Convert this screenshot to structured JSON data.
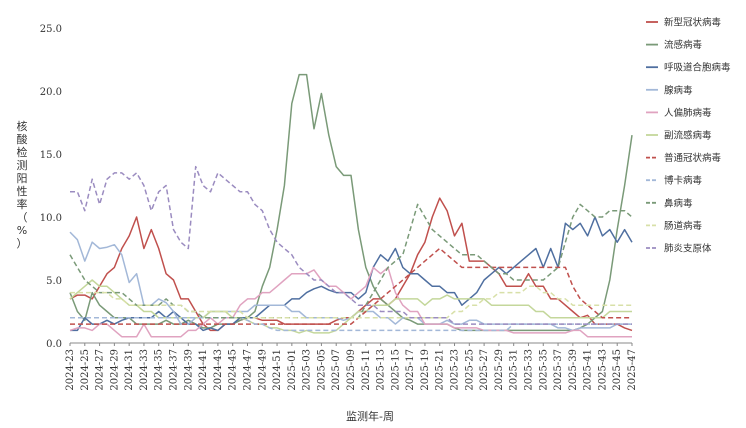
{
  "chart_data": {
    "type": "line",
    "title": "",
    "xlabel": "监测年-周",
    "ylabel": "核酸检测阳性率（%）",
    "ylim": [
      0,
      25
    ],
    "y_ticks": [
      "0.0",
      "5.0",
      "10.0",
      "15.0",
      "20.0",
      "25.0"
    ],
    "grid": false,
    "legend_position": "right",
    "x": [
      "2024-23",
      "2024-24",
      "2024-25",
      "2024-26",
      "2024-27",
      "2024-28",
      "2024-29",
      "2024-30",
      "2024-31",
      "2024-32",
      "2024-33",
      "2024-34",
      "2024-35",
      "2024-36",
      "2024-37",
      "2024-38",
      "2024-39",
      "2024-40",
      "2024-41",
      "2024-42",
      "2024-43",
      "2024-44",
      "2024-45",
      "2024-46",
      "2024-47",
      "2024-48",
      "2024-49",
      "2024-50",
      "2024-51",
      "2024-52",
      "2025-01",
      "2025-02",
      "2025-03",
      "2025-04",
      "2025-05",
      "2025-06",
      "2025-07",
      "2025-08",
      "2025-09",
      "2025-10",
      "2025-11",
      "2025-12",
      "2025-13",
      "2025-14",
      "2025-15",
      "2025-16",
      "2025-17",
      "2025-18",
      "2025-19",
      "2025-20",
      "2025-21",
      "2025-22",
      "2025-23",
      "2025-24",
      "2025-25",
      "2025-26",
      "2025-27",
      "2025-28",
      "2025-29",
      "2025-30",
      "2025-31",
      "2025-32",
      "2025-33",
      "2025-34",
      "2025-35",
      "2025-36",
      "2025-37",
      "2025-38",
      "2025-39",
      "2025-40",
      "2025-41",
      "2025-42",
      "2025-43",
      "2025-44",
      "2025-45",
      "2025-46",
      "2025-47"
    ],
    "x_tick_labels": [
      "2024-23",
      "2024-25",
      "2024-27",
      "2024-29",
      "2024-31",
      "2024-33",
      "2024-35",
      "2024-37",
      "2024-39",
      "2024-41",
      "2024-43",
      "2024-45",
      "2024-47",
      "2024-49",
      "2024-51",
      "2025-01",
      "2025-03",
      "2025-05",
      "2025-07",
      "2025-09",
      "2025-11",
      "2025-13",
      "2025-15",
      "2025-17",
      "2025-19",
      "2025-21",
      "2025-23",
      "2025-25",
      "2025-27",
      "2025-29",
      "2025-31",
      "2025-33",
      "2025-35",
      "2025-37",
      "2025-39",
      "2025-41",
      "2025-43",
      "2025-45",
      "2025-47"
    ],
    "series": [
      {
        "name": "新型冠状病毒",
        "color": "#c0504d",
        "dash": "solid",
        "values": [
          3.5,
          3.8,
          3.8,
          3.5,
          4.5,
          5.5,
          6,
          7.5,
          8.5,
          10,
          7.5,
          9,
          7.5,
          5.5,
          5,
          3.5,
          3.5,
          2.5,
          1.5,
          1,
          1,
          1.5,
          1.5,
          1.8,
          2,
          2,
          1.8,
          1.8,
          1.8,
          1.5,
          1.5,
          1.5,
          1.5,
          1.5,
          1.5,
          1.5,
          1.8,
          2,
          2,
          2.5,
          3,
          3.5,
          3.5,
          3,
          3.5,
          4.5,
          5.5,
          7,
          8,
          10,
          11.5,
          10.5,
          8.5,
          9.5,
          6.5,
          6.5,
          6.5,
          6,
          5.5,
          4.5,
          4.5,
          4.5,
          5.5,
          4.5,
          4.5,
          3.5,
          3.5,
          3,
          2.5,
          2,
          2.2,
          1.5,
          1.5,
          1.5,
          1.5,
          1.2,
          1
        ]
      },
      {
        "name": "流感病毒",
        "color": "#7a9a78",
        "dash": "solid",
        "values": [
          4,
          2.5,
          1.8,
          4,
          3,
          2.5,
          2,
          2,
          2,
          1.5,
          1.5,
          1.5,
          1.5,
          1.8,
          1.5,
          1.5,
          1.8,
          1.5,
          1.2,
          1.2,
          1.5,
          1.5,
          1.5,
          1.8,
          2,
          2.5,
          4.5,
          6,
          9,
          12.5,
          19,
          21.3,
          21.3,
          17,
          19.8,
          16.5,
          14,
          13.3,
          13.3,
          9,
          6,
          4.5,
          3.5,
          3,
          2.5,
          2,
          1.8,
          1.5,
          1.5,
          1.5,
          1.5,
          1.5,
          1.2,
          1,
          1,
          1,
          1,
          1,
          1,
          1,
          1,
          1,
          1,
          1,
          1,
          1,
          1,
          1,
          1,
          1.2,
          1.5,
          2,
          2.5,
          5,
          9,
          12.5,
          16.5
        ]
      },
      {
        "name": "呼吸道合胞病毒",
        "color": "#4f6fa0",
        "dash": "solid",
        "values": [
          1,
          1,
          2,
          1.5,
          1.5,
          1.8,
          1.5,
          1.8,
          2,
          2,
          2,
          2,
          2.5,
          2,
          2.5,
          2,
          1.5,
          1.5,
          1,
          1.2,
          1,
          1.5,
          1.5,
          2,
          2,
          2,
          2.5,
          3,
          3,
          3,
          3.5,
          3.5,
          4,
          4.3,
          4.5,
          4.2,
          4,
          4,
          4,
          3.5,
          4,
          6,
          7,
          6.5,
          7.5,
          6,
          5.5,
          5.5,
          5,
          4.5,
          4.5,
          4,
          4,
          3,
          3.5,
          4,
          5,
          5.5,
          6,
          5.5,
          6,
          6.5,
          7,
          7.5,
          6,
          7.5,
          6,
          9.5,
          9,
          9.5,
          8.5,
          10,
          8.5,
          9,
          8,
          9,
          8
        ]
      },
      {
        "name": "腺病毒",
        "color": "#a3b8d8",
        "dash": "solid",
        "values": [
          8.8,
          8.2,
          6.5,
          8,
          7.5,
          7.6,
          7.8,
          7,
          4.8,
          5.5,
          3,
          3,
          3.5,
          3.2,
          2.5,
          1.5,
          1.5,
          2,
          2,
          2.5,
          2.5,
          2.5,
          2.5,
          2.5,
          2.5,
          3,
          3,
          3,
          3,
          3,
          2.5,
          2.5,
          2,
          2,
          2,
          2,
          2,
          1.8,
          2,
          2.5,
          2.5,
          2.5,
          2,
          2,
          1.5,
          2,
          2,
          2,
          1.5,
          1.5,
          1.5,
          1.8,
          1.5,
          1.5,
          1.8,
          1.8,
          1.5,
          1.5,
          1.5,
          1.5,
          1.5,
          1.5,
          1.5,
          1.5,
          1.5,
          1.5,
          1.2,
          1.2,
          1,
          1.2,
          1.2,
          1.2,
          1.2,
          1.2,
          1.5,
          1.5,
          1.5
        ]
      },
      {
        "name": "人偏肺病毒",
        "color": "#e0a3c0",
        "dash": "solid",
        "values": [
          1,
          1.2,
          1.2,
          1,
          1.5,
          1.5,
          1,
          0.5,
          0.5,
          0.5,
          1.5,
          0.5,
          0.5,
          0.5,
          0.5,
          0.5,
          1,
          1,
          1.5,
          2,
          1.5,
          2,
          2,
          3,
          3.5,
          3.5,
          4,
          4,
          4.5,
          5,
          5.5,
          5.5,
          5.5,
          5.8,
          5,
          4.5,
          4.5,
          4,
          3.5,
          4,
          4.5,
          6,
          5.5,
          6,
          4,
          3,
          2.5,
          2.5,
          1.5,
          1.5,
          1.5,
          1.5,
          1.2,
          1.2,
          1.2,
          1.2,
          1,
          1,
          1,
          1,
          0.8,
          0.8,
          0.8,
          0.8,
          0.8,
          0.8,
          0.8,
          0.8,
          1,
          1,
          0.5,
          0.5,
          0.5,
          0.5,
          0.5,
          0.5,
          0.5
        ]
      },
      {
        "name": "副流感病毒",
        "color": "#c4d79b",
        "dash": "solid",
        "values": [
          3.5,
          4,
          4.5,
          5,
          4.5,
          4.5,
          4,
          3.5,
          3,
          3,
          2.5,
          2.5,
          2,
          2,
          2,
          2,
          2,
          2,
          2,
          2.5,
          2.5,
          2.5,
          2,
          2,
          1.8,
          1.5,
          1.5,
          1.2,
          1.2,
          1,
          1,
          0.8,
          1,
          0.8,
          0.8,
          0.8,
          1,
          1.5,
          2,
          2.5,
          2.5,
          3,
          3,
          3,
          3.5,
          3.5,
          3.5,
          3.5,
          3,
          3.5,
          3.5,
          3.8,
          3.5,
          3.5,
          3.5,
          3.5,
          3.5,
          3,
          3,
          3,
          3,
          3,
          3,
          2.5,
          2.5,
          2,
          2,
          2,
          2,
          2,
          2,
          2,
          2,
          2.5,
          2.5,
          2.5,
          2.5
        ]
      },
      {
        "name": "普通冠状病毒",
        "color": "#c0504d",
        "dash": "dashed",
        "values": [
          1.5,
          1.5,
          1.5,
          1.5,
          1.5,
          1.5,
          1.5,
          1.5,
          1.5,
          1.5,
          1.5,
          1.5,
          1.5,
          1.5,
          1.5,
          1.5,
          1.5,
          1.5,
          1.5,
          1.5,
          1.5,
          1.5,
          1.5,
          1.5,
          1.5,
          1.5,
          1.5,
          1.5,
          1.5,
          1.5,
          1.5,
          1.5,
          1.5,
          1.5,
          1.5,
          1.5,
          1.5,
          1.5,
          1.5,
          2,
          2.5,
          3,
          3.5,
          4,
          4.5,
          5,
          5.5,
          6,
          6.5,
          7,
          7.5,
          7,
          6.5,
          6,
          6,
          6,
          6,
          6,
          6,
          6,
          6,
          6,
          6,
          6,
          6,
          6,
          6,
          6,
          4.5,
          3.5,
          3,
          2.5,
          2,
          2,
          2,
          2,
          2
        ]
      },
      {
        "name": "博卡病毒",
        "color": "#a3b8d8",
        "dash": "dashed",
        "values": [
          2,
          2,
          2,
          2,
          2,
          2,
          2,
          2,
          2,
          2,
          2,
          2,
          2,
          2,
          2,
          2,
          2,
          2,
          2,
          2,
          2,
          2,
          2,
          2,
          1.8,
          1.5,
          1.5,
          1.2,
          1,
          1,
          1,
          1,
          1,
          1,
          1,
          1,
          1,
          1,
          1,
          1,
          1,
          1,
          1,
          1,
          1,
          1,
          1,
          1,
          1,
          1,
          1,
          1,
          1,
          1,
          1,
          1,
          1,
          1,
          1,
          1,
          1.5,
          1.5,
          1.5,
          1.5,
          1.5,
          1.5,
          1.5,
          1.5,
          1.5,
          1.5,
          1.5,
          1.5,
          1.5,
          1.5,
          1.5,
          1.5,
          1.5
        ]
      },
      {
        "name": "鼻病毒",
        "color": "#7a9a78",
        "dash": "dashed",
        "values": [
          7,
          6,
          5,
          4.5,
          4,
          4,
          4,
          4,
          3.5,
          3,
          3,
          3,
          3,
          3.5,
          3,
          3,
          2.5,
          2.5,
          2,
          2,
          2,
          2,
          2,
          2,
          2,
          2,
          2,
          2,
          2,
          2,
          2,
          2,
          2,
          2,
          2,
          2,
          2,
          2,
          2,
          2,
          3,
          4,
          5,
          6,
          6.5,
          7,
          9,
          11,
          10,
          9,
          8.5,
          8,
          7.5,
          7,
          7,
          7,
          6.5,
          6,
          5.5,
          5.5,
          5,
          5,
          5,
          5,
          5,
          5.5,
          6,
          8,
          10,
          11,
          10.5,
          10,
          10,
          10.5,
          10.5,
          10.5,
          10
        ]
      },
      {
        "name": "肠道病毒",
        "color": "#d8e0a8",
        "dash": "dashed",
        "values": [
          4,
          4,
          4,
          4,
          4,
          4,
          3.5,
          3.5,
          3,
          3,
          3,
          3,
          3,
          3,
          3,
          3,
          2.5,
          2.5,
          2.5,
          2.5,
          2.5,
          2.5,
          2.5,
          2.5,
          2,
          2,
          2,
          2,
          2,
          2,
          2,
          2,
          2,
          2,
          2,
          2,
          2,
          2,
          2,
          2,
          2,
          2,
          2,
          2,
          2,
          2,
          2,
          2,
          2,
          2,
          2,
          2,
          2.5,
          2.5,
          3,
          3,
          3.5,
          3.5,
          4,
          4,
          4,
          4,
          4.5,
          4.5,
          4,
          4,
          3.5,
          3.5,
          3,
          3,
          3,
          3,
          3,
          3,
          3,
          3,
          3
        ]
      },
      {
        "name": "肺炎支原体",
        "color": "#9b8cc0",
        "dash": "dashed",
        "values": [
          12,
          12,
          10.5,
          13,
          11,
          13,
          13.5,
          13.5,
          13,
          13.5,
          12.5,
          10.5,
          12,
          12.5,
          9,
          8,
          7.5,
          14,
          12.5,
          12,
          13.5,
          13,
          12.5,
          12,
          12,
          11,
          10.5,
          9,
          8,
          7.5,
          7,
          6,
          5.5,
          5,
          5,
          4.5,
          4,
          4,
          3.5,
          3,
          3,
          3,
          2.5,
          2.5,
          2.5,
          2.5,
          2,
          2,
          2,
          2,
          2,
          2,
          1.5,
          1.5,
          1.5,
          1.5,
          1.5,
          1.5,
          1.5,
          1.5,
          1.5,
          1.5,
          1.5,
          1.5,
          1.5,
          1.5,
          1.5,
          1.5,
          1.5,
          1.5,
          1.5,
          1.5,
          1.5,
          1.5,
          1.5,
          1.5,
          1.5
        ]
      }
    ]
  }
}
